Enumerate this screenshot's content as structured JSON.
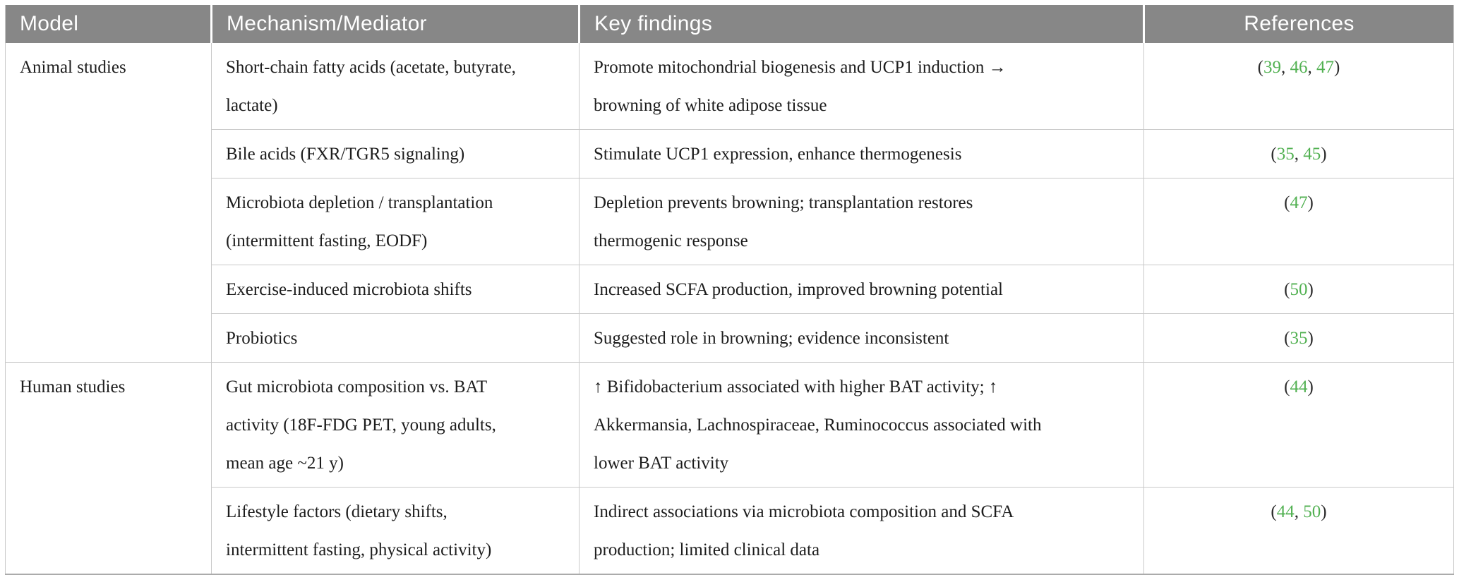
{
  "columns": [
    {
      "label": "Model"
    },
    {
      "label": "Mechanism/Mediator"
    },
    {
      "label": "Key findings"
    },
    {
      "label": "References"
    }
  ],
  "groups": [
    {
      "model": "Animal studies",
      "rows": [
        {
          "mechanism": "Short-chain fatty acids (acetate, butyrate,\nlactate)",
          "findings": "Promote mitochondrial biogenesis and UCP1 induction →\nbrowning of white adipose tissue",
          "refs": [
            "39",
            "46",
            "47"
          ]
        },
        {
          "mechanism": "Bile acids (FXR/TGR5 signaling)",
          "findings": "Stimulate UCP1 expression, enhance thermogenesis",
          "refs": [
            "35",
            "45"
          ]
        },
        {
          "mechanism": "Microbiota depletion / transplantation\n(intermittent fasting, EODF)",
          "findings": "Depletion prevents browning; transplantation restores\nthermogenic response",
          "refs": [
            "47"
          ]
        },
        {
          "mechanism": "Exercise-induced microbiota shifts",
          "findings": "Increased SCFA production, improved browning potential",
          "refs": [
            "50"
          ]
        },
        {
          "mechanism": "Probiotics",
          "findings": "Suggested role in browning; evidence inconsistent",
          "refs": [
            "35"
          ]
        }
      ]
    },
    {
      "model": "Human studies",
      "rows": [
        {
          "mechanism": "Gut microbiota composition vs. BAT\nactivity (18F-FDG PET, young adults,\nmean age ~21 y)",
          "findings": "↑ Bifidobacterium associated with higher BAT activity; ↑\nAkkermansia, Lachnospiraceae, Ruminococcus associated with\nlower BAT activity",
          "refs": [
            "44"
          ]
        },
        {
          "mechanism": "Lifestyle factors (dietary shifts,\nintermittent fasting, physical activity)",
          "findings": "Indirect associations via microbiota composition and SCFA\nproduction; limited clinical data",
          "refs": [
            "44",
            "50"
          ]
        }
      ]
    }
  ],
  "refs_format": {
    "open": "(",
    "close": ")",
    "separator": ", "
  },
  "colors": {
    "header_bg": "#878787",
    "header_text": "#ffffff",
    "body_text": "#1d1d1d",
    "grid_border": "#c9c9c9",
    "table_bottom_border": "#ababab",
    "reference_green": "#52b152",
    "reference_punctuation": "#2b2b2b"
  }
}
